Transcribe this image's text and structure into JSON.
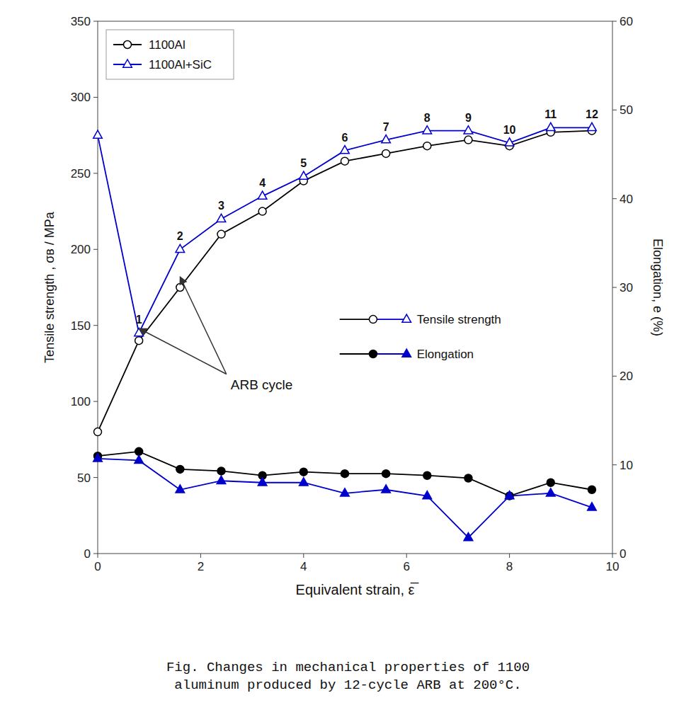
{
  "chart_data": {
    "type": "line",
    "title": "Fig. Changes in mechanical properties of 1100\naluminum produced by 12-cycle ARB at 200°C.",
    "x_label": "Equivalent strain, ε̅",
    "y_label": "Tensile strength , σʙ / MPa",
    "y2_label": "Elongation, e (%)",
    "x": [
      0.0,
      0.8,
      1.6,
      2.4,
      3.2,
      4.0,
      4.8,
      5.6,
      6.4,
      7.2,
      8.0,
      8.8,
      9.6
    ],
    "xlim": [
      0,
      10
    ],
    "xticks": [
      0,
      2,
      4,
      6,
      8,
      10
    ],
    "ylim": [
      0,
      350
    ],
    "yticks": [
      0,
      50,
      100,
      150,
      200,
      250,
      300,
      350
    ],
    "y2lim": [
      0,
      60
    ],
    "y2ticks": [
      0,
      10,
      20,
      30,
      40,
      50,
      60
    ],
    "grid": false,
    "legend": "upper left",
    "series": [
      {
        "name": "1100Al",
        "measure": "Tensile strength",
        "color": "#000000",
        "marker": "open-circle",
        "values": [
          80,
          140,
          175,
          210,
          225,
          245,
          258,
          263,
          268,
          272,
          268,
          277,
          278
        ],
        "point_labels": [
          null,
          "1",
          "2",
          "3",
          "4",
          "5",
          "6",
          "7",
          "8",
          "9",
          "10",
          "11",
          "12"
        ]
      },
      {
        "name": "1100Al+SiC",
        "measure": "Tensile strength",
        "color": "#0000cc",
        "marker": "open-triangle",
        "values": [
          275,
          145,
          200,
          220,
          235,
          248,
          265,
          272,
          278,
          278,
          270,
          280,
          280
        ]
      },
      {
        "name": "1100Al",
        "measure": "Elongation",
        "color": "#000000",
        "marker": "filled-circle",
        "axis": "y2",
        "values": [
          11.0,
          11.5,
          9.5,
          9.3,
          8.8,
          9.2,
          9.0,
          9.0,
          8.8,
          8.5,
          6.5,
          8.0,
          7.2
        ]
      },
      {
        "name": "1100Al+SiC",
        "measure": "Elongation",
        "color": "#0000cc",
        "marker": "filled-triangle",
        "axis": "y2",
        "values": [
          10.7,
          10.5,
          7.2,
          8.2,
          8.0,
          8.0,
          6.8,
          7.2,
          6.5,
          1.8,
          6.5,
          6.8,
          5.2
        ]
      }
    ],
    "annotations": [
      {
        "text": "ARB cycle",
        "x": 2.5,
        "y": 118,
        "arrows": [
          {
            "x": 0.8,
            "y": 148
          },
          {
            "x": 1.6,
            "y": 182
          }
        ]
      }
    ]
  }
}
